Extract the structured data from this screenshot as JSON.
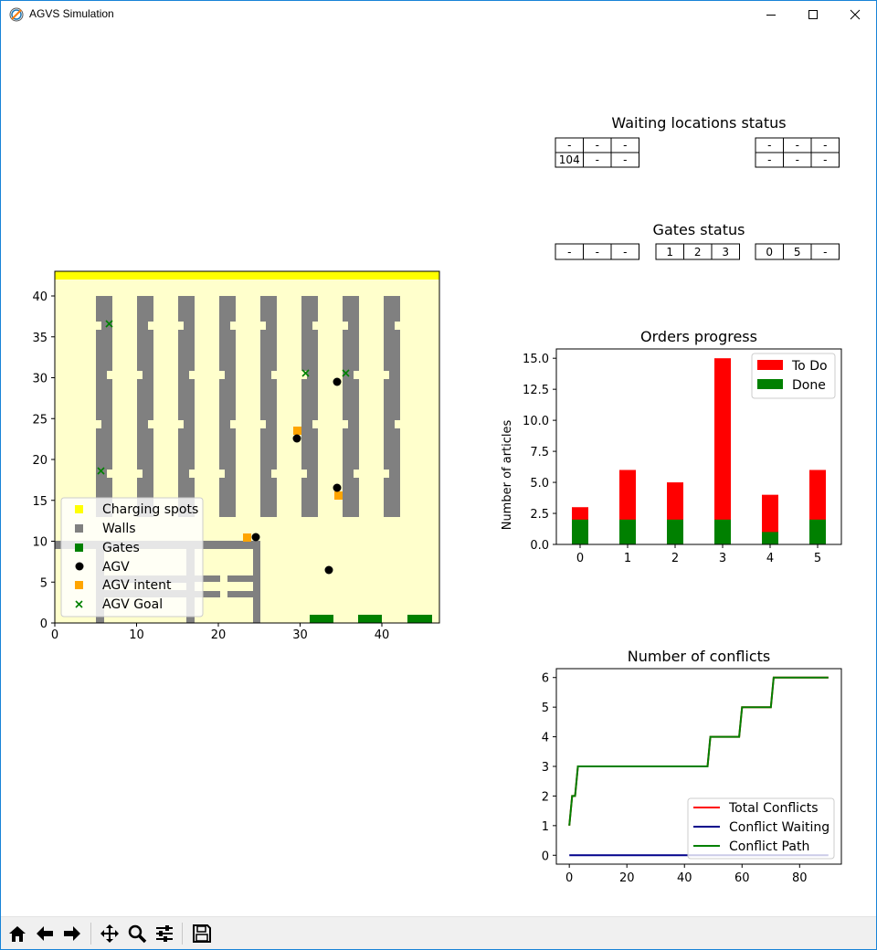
{
  "window": {
    "title": "AGVS Simulation"
  },
  "map": {
    "xticks": [
      "0",
      "10",
      "20",
      "30",
      "40"
    ],
    "yticks": [
      "0",
      "5",
      "10",
      "15",
      "20",
      "25",
      "30",
      "35",
      "40"
    ],
    "legend": [
      "Charging spots",
      "Walls",
      "Gates",
      "AGV",
      "AGV intent",
      "AGV Goal"
    ]
  },
  "waiting": {
    "title": "Waiting locations status",
    "left": [
      [
        "-",
        "-",
        "-"
      ],
      [
        "104",
        "-",
        "-"
      ]
    ],
    "right": [
      [
        "-",
        "-",
        "-"
      ],
      [
        "-",
        "-",
        "-"
      ]
    ]
  },
  "gates": {
    "title": "Gates status",
    "groups": [
      [
        "-",
        "-",
        "-"
      ],
      [
        "1",
        "2",
        "3"
      ],
      [
        "0",
        "5",
        "-"
      ]
    ]
  },
  "chart_data": [
    {
      "type": "bar",
      "title": "Orders progress",
      "xlabel": "",
      "ylabel": "Number of articles",
      "categories": [
        "0",
        "1",
        "2",
        "3",
        "4",
        "5"
      ],
      "series": [
        {
          "name": "To Do",
          "values": [
            3,
            6,
            5,
            15,
            4,
            6
          ],
          "color": "#ff0000"
        },
        {
          "name": "Done",
          "values": [
            2,
            2,
            2,
            2,
            1,
            2
          ],
          "color": "#008000"
        }
      ],
      "ylim": [
        0,
        15.75
      ],
      "yticks": [
        "0.0",
        "2.5",
        "5.0",
        "7.5",
        "10.0",
        "12.5",
        "15.0"
      ],
      "legend": "top-right"
    },
    {
      "type": "line",
      "title": "Number of conflicts",
      "xlim": [
        -4.5,
        94.5
      ],
      "ylim": [
        -0.3,
        6.3
      ],
      "xticks": [
        "0",
        "20",
        "40",
        "60",
        "80"
      ],
      "yticks": [
        "0",
        "1",
        "2",
        "3",
        "4",
        "5",
        "6"
      ],
      "legend": "bottom-right",
      "series": [
        {
          "name": "Total Conflicts",
          "color": "#ff0000",
          "x": [
            0,
            1,
            2,
            3,
            48,
            49,
            54,
            55,
            59,
            60,
            70,
            71,
            90
          ],
          "y": [
            1,
            2,
            2,
            3,
            3,
            4,
            4,
            4,
            4,
            5,
            5,
            6,
            6
          ]
        },
        {
          "name": "Conflict Waiting",
          "color": "#00008b",
          "x": [
            0,
            90
          ],
          "y": [
            0,
            0
          ]
        },
        {
          "name": "Conflict Path",
          "color": "#008000",
          "x": [
            0,
            1,
            2,
            3,
            48,
            49,
            54,
            55,
            59,
            60,
            70,
            71,
            90
          ],
          "y": [
            1,
            2,
            2,
            3,
            3,
            4,
            4,
            4,
            4,
            5,
            5,
            6,
            6
          ]
        }
      ]
    }
  ],
  "toolbar": [
    "home-icon",
    "back-icon",
    "forward-icon",
    "pan-icon",
    "zoom-icon",
    "configure-icon",
    "save-icon"
  ]
}
